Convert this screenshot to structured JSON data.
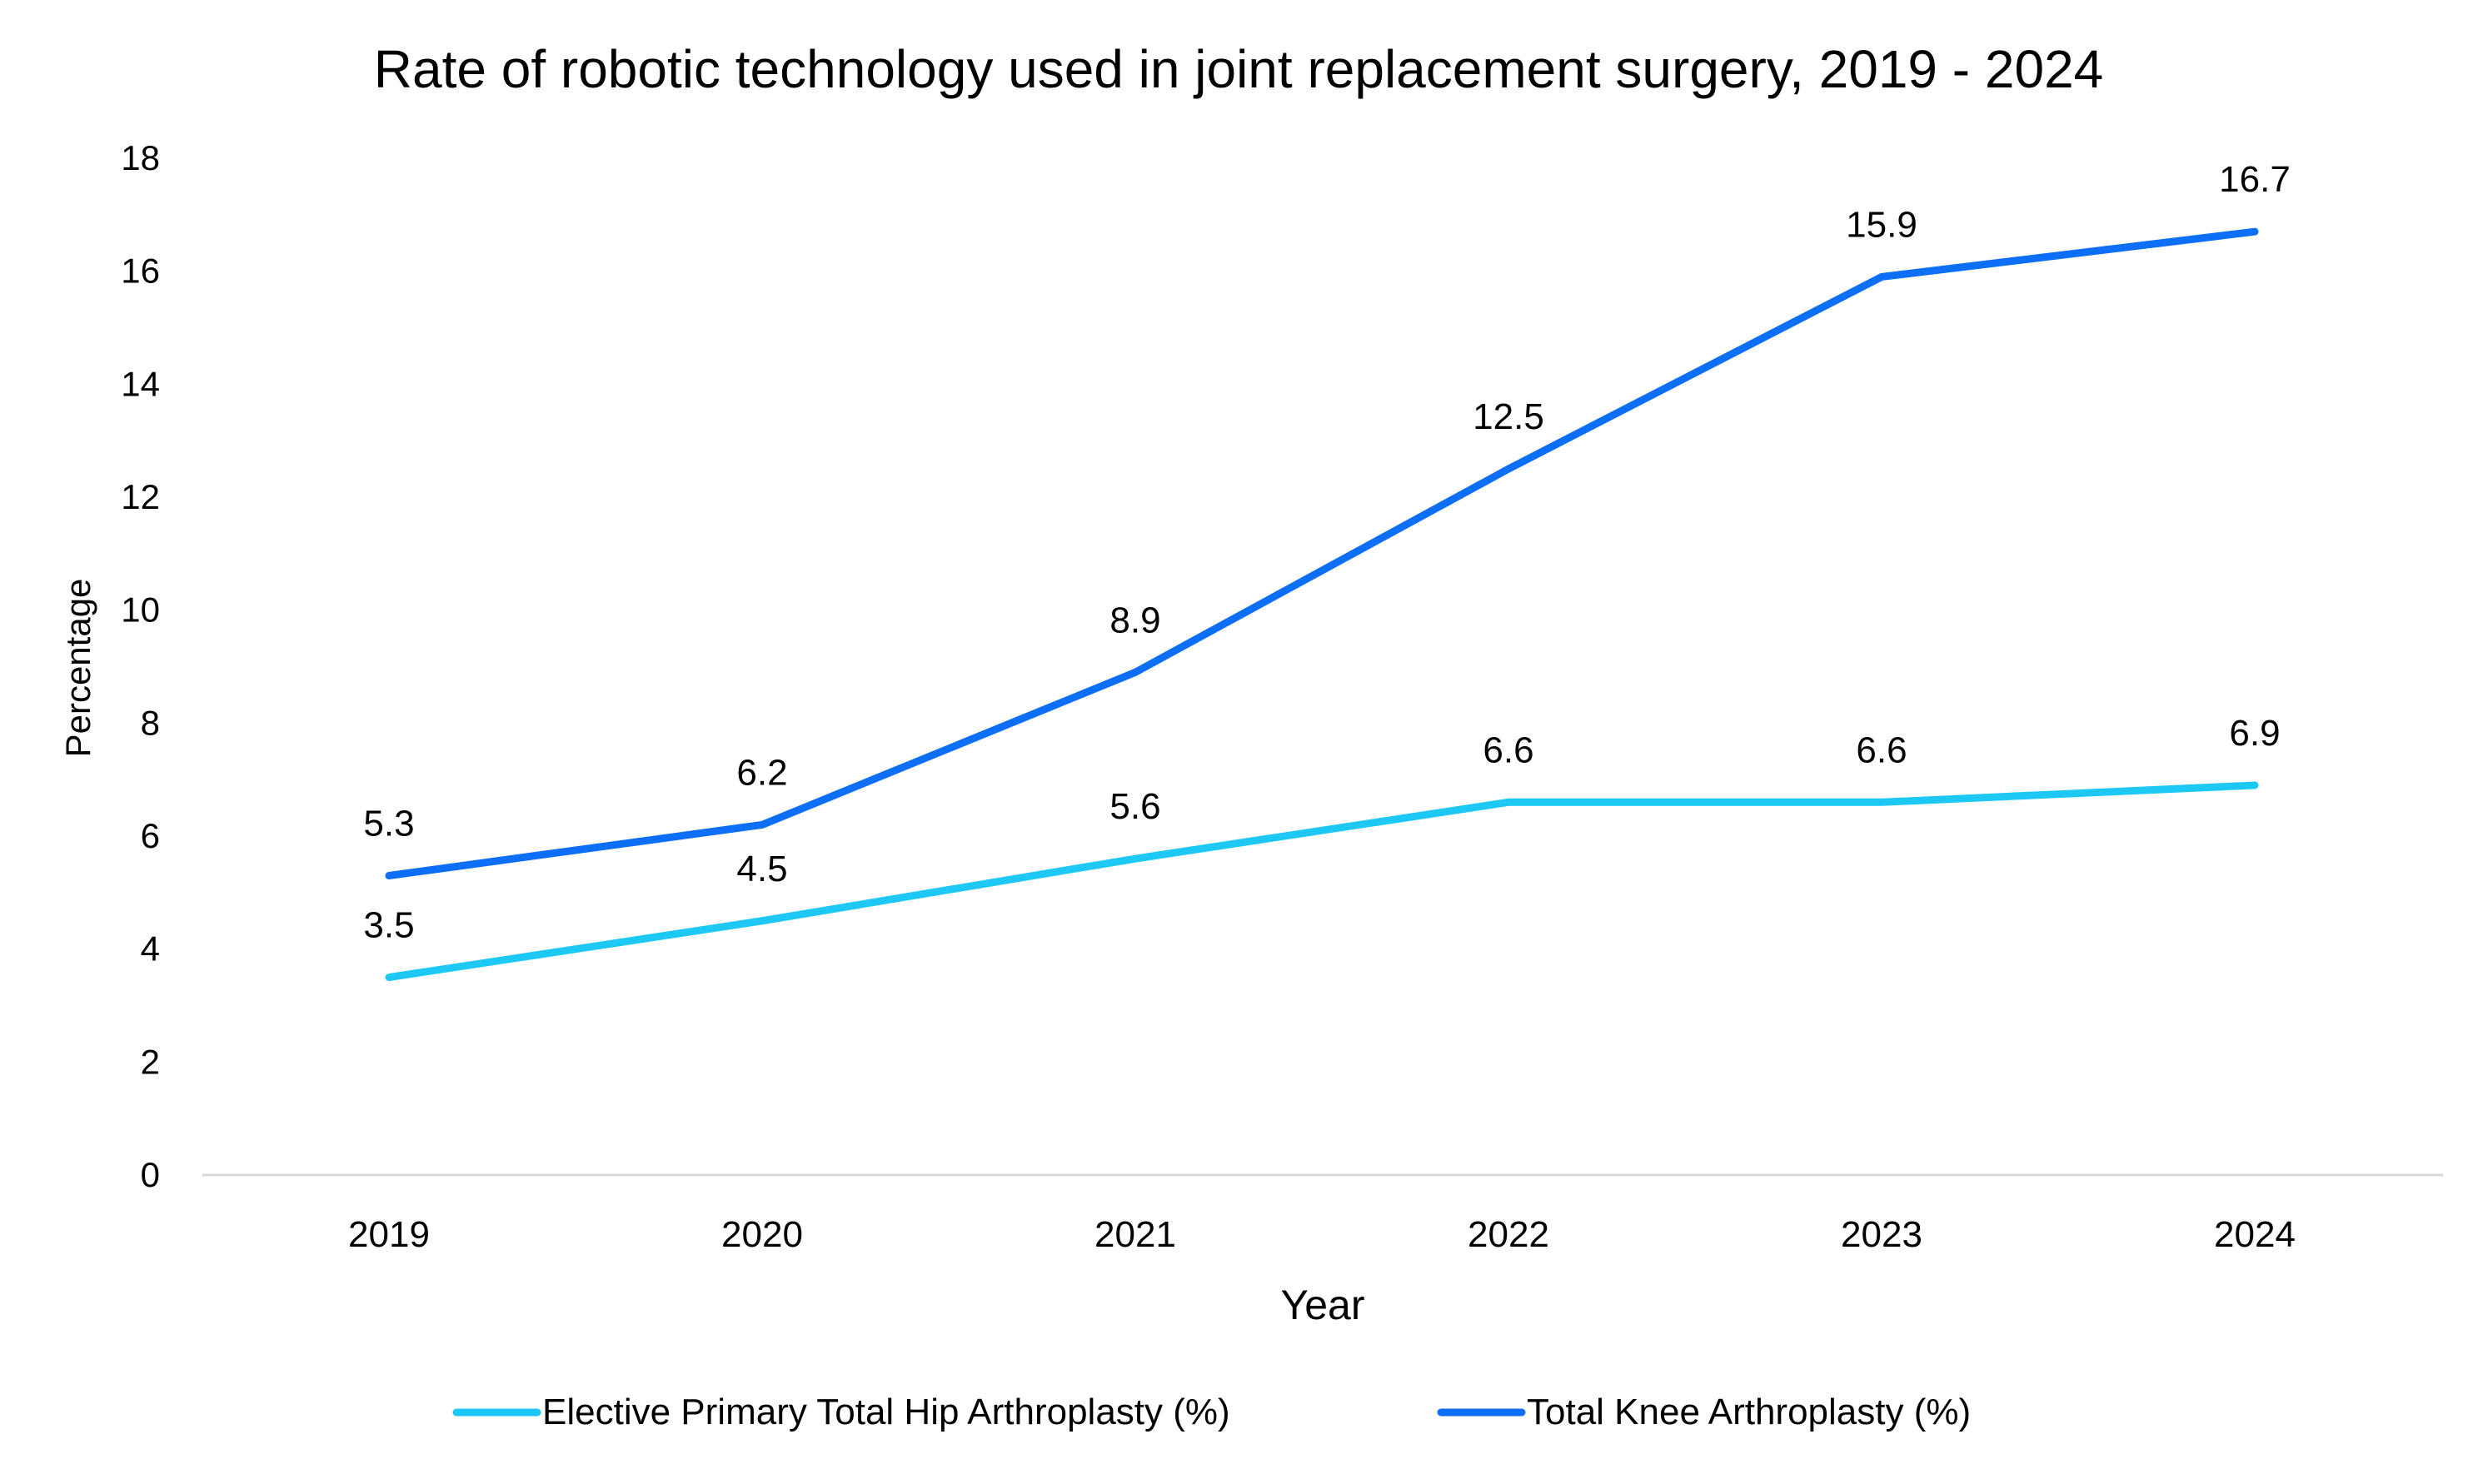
{
  "chart_data": {
    "type": "line",
    "title": "Rate of robotic technology used in joint replacement surgery, 2019 - 2024",
    "xlabel": "Year",
    "ylabel": "Percentage",
    "categories": [
      "2019",
      "2020",
      "2021",
      "2022",
      "2023",
      "2024"
    ],
    "ylim": [
      0,
      18
    ],
    "yticks": [
      0,
      2,
      4,
      6,
      8,
      10,
      12,
      14,
      16,
      18
    ],
    "grid": false,
    "legend_position": "bottom",
    "series": [
      {
        "name": "Elective Primary Total Hip Arthroplasty (%)",
        "values": [
          3.5,
          4.5,
          5.6,
          6.6,
          6.6,
          6.9
        ],
        "labels": [
          "3.5",
          "4.5",
          "5.6",
          "6.6",
          "6.6",
          "6.9"
        ],
        "color": "#1DC8F4"
      },
      {
        "name": "Total Knee Arthroplasty (%)",
        "values": [
          5.3,
          6.2,
          8.9,
          12.5,
          15.9,
          16.7
        ],
        "labels": [
          "5.3",
          "6.2",
          "8.9",
          "12.5",
          "15.9",
          "16.7"
        ],
        "color": "#0D6EF7"
      }
    ],
    "axis_color": "#D9D9D9"
  }
}
